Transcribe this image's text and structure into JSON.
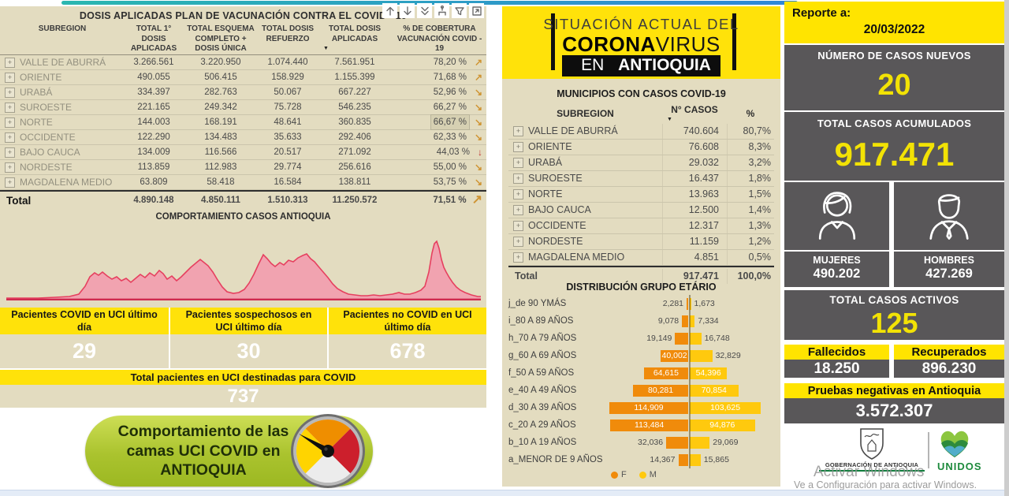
{
  "colors": {
    "tan": "#e3dcc0",
    "yellow": "#ffe20a",
    "dark_gray": "#595759",
    "value_yellow": "#f2e205",
    "area_fill": "#f1a3b0",
    "area_stroke": "#e6405f",
    "pyramid_f": "#f08b0b",
    "pyramid_m": "#ffc90e",
    "trend_orange": "#cf9433",
    "trend_red": "#c03431",
    "button_green": "#aac32e"
  },
  "left_panel": {
    "title": "DOSIS APLICADAS PLAN DE VACUNACIÓN CONTRA EL COVID - 19",
    "toolbar": [
      "arrow-up",
      "arrow-down",
      "double-arrow-down",
      "drill-hierarchy",
      "filter",
      "focus-mode"
    ],
    "vaccination_table": {
      "columns": [
        "SUBREGION",
        "TOTAL 1° DOSIS APLICADAS",
        "TOTAL ESQUEMA COMPLETO + DOSIS ÚNICA",
        "TOTAL DOSIS REFUERZO",
        "TOTAL DOSIS APLICADAS",
        "% DE COBERTURA VACUNACIÓN COVID - 19"
      ],
      "rows": [
        {
          "subregion": "VALLE DE ABURRÁ",
          "dosis1": "3.266.561",
          "esquema": "3.220.950",
          "refuerzo": "1.074.440",
          "aplicadas": "7.561.951",
          "cobertura": "78,20 %",
          "trend": "up",
          "highlight": false
        },
        {
          "subregion": "ORIENTE",
          "dosis1": "490.055",
          "esquema": "506.415",
          "refuerzo": "158.929",
          "aplicadas": "1.155.399",
          "cobertura": "71,68 %",
          "trend": "up",
          "highlight": false
        },
        {
          "subregion": "URABÁ",
          "dosis1": "334.397",
          "esquema": "282.763",
          "refuerzo": "50.067",
          "aplicadas": "667.227",
          "cobertura": "52,96 %",
          "trend": "down-right",
          "highlight": false
        },
        {
          "subregion": "SUROESTE",
          "dosis1": "221.165",
          "esquema": "249.342",
          "refuerzo": "75.728",
          "aplicadas": "546.235",
          "cobertura": "66,27 %",
          "trend": "down-right",
          "highlight": false
        },
        {
          "subregion": "NORTE",
          "dosis1": "144.003",
          "esquema": "168.191",
          "refuerzo": "48.641",
          "aplicadas": "360.835",
          "cobertura": "66,67 %",
          "trend": "down-right",
          "highlight": true
        },
        {
          "subregion": "OCCIDENTE",
          "dosis1": "122.290",
          "esquema": "134.483",
          "refuerzo": "35.633",
          "aplicadas": "292.406",
          "cobertura": "62,33 %",
          "trend": "down-right",
          "highlight": false
        },
        {
          "subregion": "BAJO CAUCA",
          "dosis1": "134.009",
          "esquema": "116.566",
          "refuerzo": "20.517",
          "aplicadas": "271.092",
          "cobertura": "44,03 %",
          "trend": "down",
          "highlight": false
        },
        {
          "subregion": "NORDESTE",
          "dosis1": "113.859",
          "esquema": "112.983",
          "refuerzo": "29.774",
          "aplicadas": "256.616",
          "cobertura": "55,00 %",
          "trend": "down-right",
          "highlight": false
        },
        {
          "subregion": "MAGDALENA MEDIO",
          "dosis1": "63.809",
          "esquema": "58.418",
          "refuerzo": "16.584",
          "aplicadas": "138.811",
          "cobertura": "53,75 %",
          "trend": "down-right",
          "highlight": false
        }
      ],
      "total": {
        "label": "Total",
        "dosis1": "4.890.148",
        "esquema": "4.850.111",
        "refuerzo": "1.510.313",
        "aplicadas": "11.250.572",
        "cobertura": "71,51 %",
        "trend": "up"
      }
    },
    "cases_chart_title": "COMPORTAMIENTO CASOS ANTIOQUIA",
    "uci": {
      "cards": [
        {
          "label": "Pacientes COVID en UCI último día",
          "value": "29"
        },
        {
          "label": "Pacientes sospechosos en UCI último día",
          "value": "30"
        },
        {
          "label": "Pacientes no COVID en UCI último día",
          "value": "678"
        }
      ],
      "total_label": "Total pacientes en UCI destinadas para COVID",
      "total_value": "737"
    },
    "uci_button_label": "Comportamiento de las camas UCI COVID en ANTIOQUIA"
  },
  "middle_panel": {
    "header": {
      "line1": "SITUACIÓN ACTUAL DEL",
      "line2_bold": "CORONA",
      "line2_regular": "VIRUS",
      "line3_regular": "EN ",
      "line3_bold": "ANTIOQUIA"
    },
    "cases_table": {
      "title": "MUNICIPIOS CON CASOS COVID-19",
      "columns": [
        "SUBREGION",
        "N° CASOS",
        "%"
      ],
      "rows": [
        {
          "subregion": "VALLE DE ABURRÁ",
          "casos": "740.604",
          "pct": "80,7%"
        },
        {
          "subregion": "ORIENTE",
          "casos": "76.608",
          "pct": "8,3%"
        },
        {
          "subregion": "URABÁ",
          "casos": "29.032",
          "pct": "3,2%"
        },
        {
          "subregion": "SUROESTE",
          "casos": "16.437",
          "pct": "1,8%"
        },
        {
          "subregion": "NORTE",
          "casos": "13.963",
          "pct": "1,5%"
        },
        {
          "subregion": "BAJO CAUCA",
          "casos": "12.500",
          "pct": "1,4%"
        },
        {
          "subregion": "OCCIDENTE",
          "casos": "12.317",
          "pct": "1,3%"
        },
        {
          "subregion": "NORDESTE",
          "casos": "11.159",
          "pct": "1,2%"
        },
        {
          "subregion": "MAGDALENA MEDIO",
          "casos": "4.851",
          "pct": "0,5%"
        }
      ],
      "total": {
        "label": "Total",
        "casos": "917.471",
        "pct": "100,0%"
      }
    },
    "age_chart": {
      "title": "DISTRIBUCIÓN GRUPO ETÁRIO",
      "legend": [
        {
          "label": "F",
          "color": "#f08b0b"
        },
        {
          "label": "M",
          "color": "#ffc90e"
        }
      ],
      "groups": [
        {
          "label": "j_de 90 YMÁS",
          "f": "2,281",
          "m": "1,673",
          "f_val": 2281,
          "m_val": 1673
        },
        {
          "label": "i_80 A 89 AÑOS",
          "f": "9,078",
          "m": "7,334",
          "f_val": 9078,
          "m_val": 7334
        },
        {
          "label": "h_70 A 79 AÑOS",
          "f": "19,149",
          "m": "16,748",
          "f_val": 19149,
          "m_val": 16748
        },
        {
          "label": "g_60 A 69 AÑOS",
          "f": "40,002",
          "m": "32,829",
          "f_val": 40002,
          "m_val": 32829
        },
        {
          "label": "f_50 A 59 AÑOS",
          "f": "64,615",
          "m": "54,396",
          "f_val": 64615,
          "m_val": 54396
        },
        {
          "label": "e_40 A 49 AÑOS",
          "f": "80,281",
          "m": "70,854",
          "f_val": 80281,
          "m_val": 70854
        },
        {
          "label": "d_30 A 39 AÑOS",
          "f": "114,909",
          "m": "103,625",
          "f_val": 114909,
          "m_val": 103625
        },
        {
          "label": "c_20 A 29 AÑOS",
          "f": "113,484",
          "m": "94,876",
          "f_val": 113484,
          "m_val": 94876
        },
        {
          "label": "b_10 A 19 AÑOS",
          "f": "32,036",
          "m": "29,069",
          "f_val": 32036,
          "m_val": 29069
        },
        {
          "label": "a_MENOR DE 9 AÑOS",
          "f": "14,367",
          "m": "15,865",
          "f_val": 14367,
          "m_val": 15865
        }
      ]
    }
  },
  "right_panel": {
    "report": {
      "label": "Reporte a:",
      "date": "20/03/2022"
    },
    "new_cases": {
      "label": "NÚMERO DE CASOS NUEVOS",
      "value": "20"
    },
    "total_cases": {
      "label": "TOTAL CASOS ACUMULADOS",
      "value": "917.471"
    },
    "gender": {
      "women_label": "MUJERES",
      "women_value": "490.202",
      "men_label": "HOMBRES",
      "men_value": "427.269"
    },
    "active": {
      "label": "TOTAL CASOS ACTIVOS",
      "value": "125"
    },
    "deaths": {
      "label": "Fallecidos",
      "value": "18.250"
    },
    "recovered": {
      "label": "Recuperados",
      "value": "896.230"
    },
    "negative_tests": {
      "label": "Pruebas negativas en Antioquia",
      "value": "3.572.307"
    },
    "logos": {
      "gobernacion": "GOBERNACIÓN DE ANTIOQUIA",
      "unidos": "UNIDOS"
    }
  },
  "watermark": {
    "line1": "Activar Windows",
    "line2": "Ve a Configuración para activar Windows."
  },
  "chart_data": [
    {
      "type": "area",
      "title": "COMPORTAMIENTO CASOS ANTIOQUIA",
      "description": "Curva epidémica de casos en el tiempo; sin etiquetas de ejes visibles; pico máximo cerca del final de la serie.",
      "fill": "#f1a3b0",
      "stroke": "#e6405f",
      "points": [
        [
          0,
          1
        ],
        [
          40,
          1
        ],
        [
          62,
          2
        ],
        [
          80,
          3
        ],
        [
          92,
          6
        ],
        [
          100,
          16
        ],
        [
          106,
          28
        ],
        [
          112,
          33
        ],
        [
          117,
          30
        ],
        [
          122,
          34
        ],
        [
          128,
          29
        ],
        [
          134,
          25
        ],
        [
          140,
          28
        ],
        [
          146,
          23
        ],
        [
          152,
          26
        ],
        [
          158,
          21
        ],
        [
          164,
          26
        ],
        [
          170,
          31
        ],
        [
          176,
          27
        ],
        [
          182,
          33
        ],
        [
          188,
          29
        ],
        [
          194,
          36
        ],
        [
          199,
          32
        ],
        [
          204,
          25
        ],
        [
          210,
          29
        ],
        [
          216,
          23
        ],
        [
          222,
          28
        ],
        [
          228,
          34
        ],
        [
          234,
          40
        ],
        [
          240,
          45
        ],
        [
          246,
          50
        ],
        [
          251,
          46
        ],
        [
          256,
          42
        ],
        [
          262,
          34
        ],
        [
          268,
          24
        ],
        [
          274,
          15
        ],
        [
          280,
          9
        ],
        [
          288,
          7
        ],
        [
          295,
          8
        ],
        [
          302,
          12
        ],
        [
          308,
          20
        ],
        [
          314,
          31
        ],
        [
          320,
          44
        ],
        [
          326,
          56
        ],
        [
          331,
          51
        ],
        [
          336,
          45
        ],
        [
          341,
          41
        ],
        [
          347,
          46
        ],
        [
          352,
          43
        ],
        [
          358,
          49
        ],
        [
          364,
          47
        ],
        [
          370,
          52
        ],
        [
          376,
          55
        ],
        [
          381,
          57
        ],
        [
          386,
          51
        ],
        [
          391,
          47
        ],
        [
          396,
          41
        ],
        [
          402,
          34
        ],
        [
          408,
          27
        ],
        [
          414,
          19
        ],
        [
          420,
          13
        ],
        [
          427,
          9
        ],
        [
          434,
          6
        ],
        [
          442,
          5
        ],
        [
          450,
          4
        ],
        [
          458,
          4
        ],
        [
          466,
          5
        ],
        [
          474,
          4
        ],
        [
          482,
          5
        ],
        [
          490,
          6
        ],
        [
          498,
          8
        ],
        [
          505,
          6
        ],
        [
          512,
          6
        ],
        [
          519,
          8
        ],
        [
          526,
          11
        ],
        [
          531,
          16
        ],
        [
          536,
          34
        ],
        [
          540,
          58
        ],
        [
          543,
          70
        ],
        [
          546,
          73
        ],
        [
          549,
          64
        ],
        [
          552,
          50
        ],
        [
          555,
          40
        ],
        [
          558,
          34
        ],
        [
          562,
          27
        ],
        [
          566,
          21
        ],
        [
          571,
          15
        ],
        [
          576,
          11
        ],
        [
          582,
          8
        ],
        [
          590,
          5
        ],
        [
          598,
          3
        ],
        [
          602,
          3
        ]
      ]
    },
    {
      "type": "bar",
      "subtype": "population-pyramid",
      "title": "DISTRIBUCIÓN GRUPO ETÁRIO",
      "categories": [
        "j_de 90 YMÁS",
        "i_80 A 89 AÑOS",
        "h_70 A 79 AÑOS",
        "g_60 A 69 AÑOS",
        "f_50 A 59 AÑOS",
        "e_40 A 49 AÑOS",
        "d_30 A 39 AÑOS",
        "c_20 A 29 AÑOS",
        "b_10 A 19 AÑOS",
        "a_MENOR DE 9 AÑOS"
      ],
      "series": [
        {
          "name": "F",
          "color": "#f08b0b",
          "values": [
            2281,
            9078,
            19149,
            40002,
            64615,
            80281,
            114909,
            113484,
            32036,
            14367
          ]
        },
        {
          "name": "M",
          "color": "#ffc90e",
          "values": [
            1673,
            7334,
            16748,
            32829,
            54396,
            70854,
            103625,
            94876,
            29069,
            15865
          ]
        }
      ],
      "legend_position": "bottom"
    }
  ]
}
